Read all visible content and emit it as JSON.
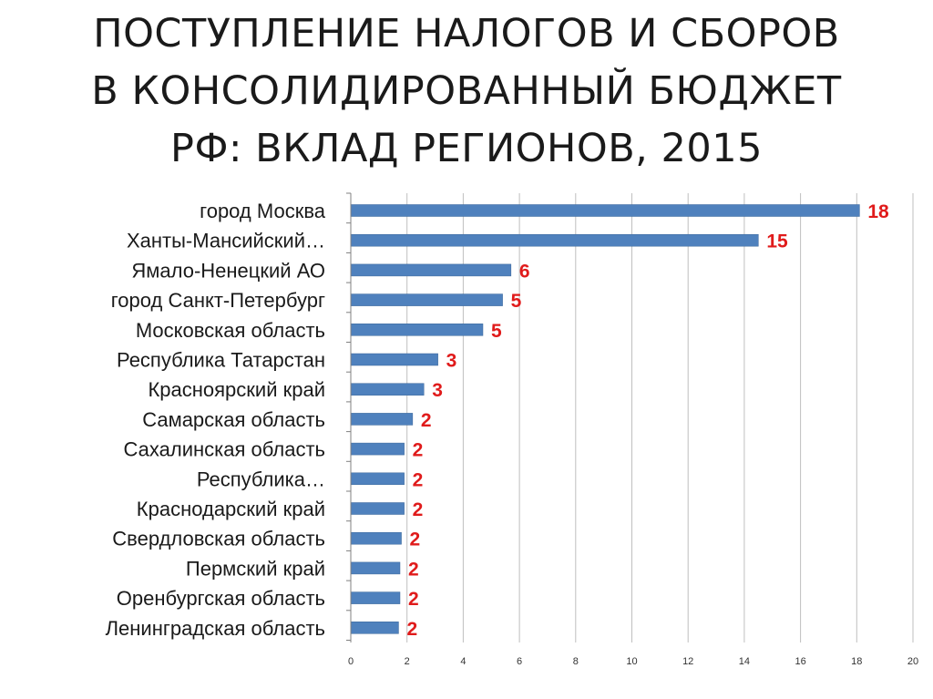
{
  "title": {
    "lines": [
      "ПОСТУПЛЕНИЕ НАЛОГОВ И СБОРОВ",
      "В КОНСОЛИДИРОВАННЫЙ БЮДЖЕТ",
      "РФ: ВКЛАД РЕГИОНОВ, 2015"
    ]
  },
  "chart_data": {
    "type": "bar",
    "orientation": "horizontal",
    "categories": [
      "город Москва",
      "Ханты-Мансийский…",
      "Ямало-Ненецкий АО",
      "город Санкт-Петербург",
      "Московская область",
      "Республика Татарстан",
      "Красноярский край",
      "Самарская область",
      "Сахалинская область",
      "Республика…",
      "Краснодарский край",
      "Свердловская область",
      "Пермский край",
      "Оренбургская область",
      "Ленинградская область"
    ],
    "values": [
      18.1,
      14.5,
      5.7,
      5.4,
      4.7,
      3.1,
      2.6,
      2.2,
      1.9,
      1.9,
      1.9,
      1.8,
      1.75,
      1.75,
      1.7
    ],
    "data_labels": [
      "18",
      "15",
      "6",
      "5",
      "5",
      "3",
      "3",
      "2",
      "2",
      "2",
      "2",
      "2",
      "2",
      "2",
      "2"
    ],
    "xlim": [
      0,
      20
    ],
    "x_ticks": [
      "0",
      "2",
      "4",
      "6",
      "8",
      "10",
      "12",
      "14",
      "16",
      "18",
      "20"
    ],
    "grid": "vertical",
    "xlabel": "",
    "ylabel": "",
    "colors": {
      "bar": "#4f81bd",
      "bar_stroke": "#3a6699",
      "data_label": "#e01b1b",
      "grid": "#bfbfbf",
      "axis": "#808080"
    }
  }
}
